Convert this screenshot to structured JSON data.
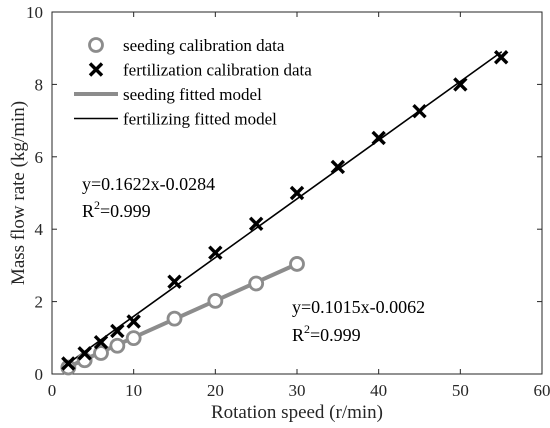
{
  "chart_data": {
    "type": "scatter",
    "xlabel": "Rotation speed (r/min)",
    "ylabel": "Mass flow rate (kg/min)",
    "xlim": [
      0,
      60
    ],
    "ylim": [
      0,
      10
    ],
    "xticks": [
      0,
      10,
      20,
      30,
      40,
      50,
      60
    ],
    "yticks": [
      0,
      2,
      4,
      6,
      8,
      10
    ],
    "grid": false,
    "legend_position": "top-left",
    "series": [
      {
        "name": "seeding calibration data",
        "kind": "points",
        "marker": "circle",
        "color": "#8c8c8c",
        "x": [
          2,
          4,
          6,
          8,
          10,
          15,
          20,
          25,
          30
        ],
        "y": [
          0.18,
          0.38,
          0.58,
          0.78,
          0.99,
          1.53,
          2.02,
          2.5,
          3.04
        ]
      },
      {
        "name": "fertilization calibration data",
        "kind": "points",
        "marker": "x",
        "color": "#000000",
        "x": [
          2,
          4,
          6,
          8,
          10,
          15,
          20,
          25,
          30,
          35,
          40,
          45,
          50,
          55
        ],
        "y": [
          0.29,
          0.57,
          0.88,
          1.19,
          1.45,
          2.55,
          3.35,
          4.15,
          5.0,
          5.72,
          6.52,
          7.26,
          8.0,
          8.75
        ]
      },
      {
        "name": "seeding fitted model",
        "kind": "line",
        "color": "#8c8c8c",
        "slope": 0.1015,
        "intercept": -0.0062,
        "x_range": [
          2,
          30
        ]
      },
      {
        "name": "fertilizing fitted model",
        "kind": "line",
        "color": "#000000",
        "slope": 0.1622,
        "intercept": -0.0284,
        "x_range": [
          1.5,
          55
        ]
      }
    ],
    "annotations": [
      {
        "line1": "y=0.1622x-0.0284",
        "r2_label": "R",
        "r2_sup": "2",
        "r2_value": "=0.999"
      },
      {
        "line1": "y=0.1015x-0.0062",
        "r2_label": "R",
        "r2_sup": "2",
        "r2_value": "=0.999"
      }
    ]
  }
}
